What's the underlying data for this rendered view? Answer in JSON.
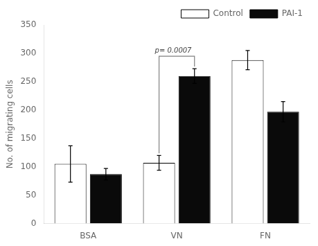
{
  "chart_data": {
    "type": "bar",
    "categories": [
      "BSA",
      "VN",
      "FN"
    ],
    "series": [
      {
        "name": "Control",
        "color": "#ffffff",
        "values": [
          105,
          107,
          288
        ],
        "errors": [
          32,
          13,
          17
        ]
      },
      {
        "name": "PAI-1",
        "color": "#0a0a0a",
        "values": [
          87,
          260,
          197
        ],
        "errors": [
          10,
          13,
          18
        ]
      }
    ],
    "ylabel": "No. of migrating cells",
    "ylim": [
      0,
      350
    ],
    "yticks": [
      0,
      50,
      100,
      150,
      200,
      250,
      300,
      350
    ],
    "annotations": [
      {
        "text": "p= 0.0007",
        "category": "VN"
      }
    ],
    "legend": "upper right",
    "grid": false
  }
}
